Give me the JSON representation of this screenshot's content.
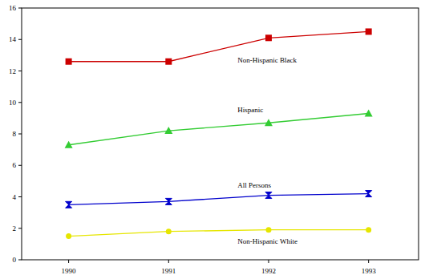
{
  "chart_data": {
    "type": "line",
    "categories": [
      "1990",
      "1991",
      "1992",
      "1993"
    ],
    "series": [
      {
        "name": "Non-Hispanic Black",
        "color": "#cc0000",
        "marker": "square",
        "values": [
          12.6,
          12.6,
          14.1,
          14.5
        ]
      },
      {
        "name": "Hispanic",
        "color": "#33cc33",
        "marker": "triangle",
        "values": [
          7.3,
          8.2,
          8.7,
          9.3
        ]
      },
      {
        "name": "All Persons",
        "color": "#0000cc",
        "marker": "bowtie",
        "values": [
          3.5,
          3.7,
          4.1,
          4.2
        ]
      },
      {
        "name": "Non-Hispanic White",
        "color": "#e6e600",
        "marker": "circle",
        "values": [
          1.5,
          1.8,
          1.9,
          1.9
        ]
      }
    ],
    "ylim": [
      0,
      16
    ],
    "yticks": [
      0,
      2,
      4,
      6,
      8,
      10,
      12,
      14,
      16
    ],
    "grid": false
  }
}
